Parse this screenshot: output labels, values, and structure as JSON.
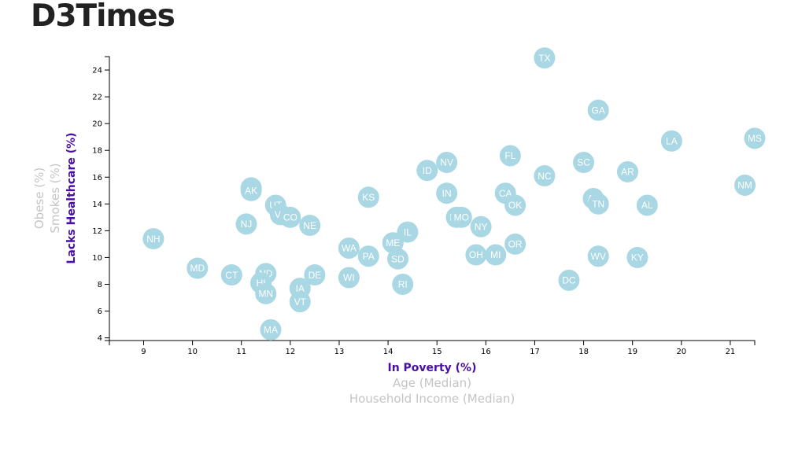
{
  "page": {
    "title": "D3Times"
  },
  "chart_data": {
    "type": "scatter",
    "title": "",
    "xlabel": "In Poverty (%)",
    "ylabel": "Lacks Healthcare (%)",
    "x_axis_options": [
      "In Poverty (%)",
      "Age (Median)",
      "Household Income (Median)"
    ],
    "y_axis_options": [
      "Lacks Healthcare (%)",
      "Smokes (%)",
      "Obese (%)"
    ],
    "xlim": [
      8.3,
      21.5
    ],
    "ylim": [
      3.8,
      25.0
    ],
    "x_ticks": [
      9,
      10,
      11,
      12,
      13,
      14,
      15,
      16,
      17,
      18,
      19,
      20,
      21
    ],
    "y_ticks": [
      4,
      6,
      8,
      10,
      12,
      14,
      16,
      18,
      20,
      22,
      24
    ],
    "grid": false,
    "marker_color": "#a9d7e4",
    "label_color": "#ffffff",
    "active_axis_color": "#4a0ea8",
    "inactive_axis_color": "#c4c4c4",
    "points": [
      {
        "label": "TX",
        "x": 17.2,
        "y": 24.9
      },
      {
        "label": "GA",
        "x": 18.3,
        "y": 21.0
      },
      {
        "label": "MS",
        "x": 21.5,
        "y": 18.9
      },
      {
        "label": "LA",
        "x": 19.8,
        "y": 18.7
      },
      {
        "label": "FL",
        "x": 16.5,
        "y": 17.6
      },
      {
        "label": "SC",
        "x": 18.0,
        "y": 17.1
      },
      {
        "label": "NV",
        "x": 15.2,
        "y": 17.1
      },
      {
        "label": "ID",
        "x": 14.8,
        "y": 16.5
      },
      {
        "label": "AR",
        "x": 18.9,
        "y": 16.4
      },
      {
        "label": "NC",
        "x": 17.2,
        "y": 16.1
      },
      {
        "label": "NM",
        "x": 21.3,
        "y": 15.4
      },
      {
        "label": "WY",
        "x": 11.2,
        "y": 15.2
      },
      {
        "label": "AK",
        "x": 11.2,
        "y": 15.0
      },
      {
        "label": "CA",
        "x": 16.4,
        "y": 14.8
      },
      {
        "label": "IN",
        "x": 15.2,
        "y": 14.8
      },
      {
        "label": "KS",
        "x": 13.6,
        "y": 14.5
      },
      {
        "label": "AZ",
        "x": 18.2,
        "y": 14.4
      },
      {
        "label": "TN",
        "x": 18.3,
        "y": 14.0
      },
      {
        "label": "AL",
        "x": 19.3,
        "y": 13.9
      },
      {
        "label": "OK",
        "x": 16.6,
        "y": 13.9
      },
      {
        "label": "UT",
        "x": 11.7,
        "y": 13.9
      },
      {
        "label": "VA",
        "x": 11.8,
        "y": 13.2
      },
      {
        "label": "CO",
        "x": 12.0,
        "y": 13.0
      },
      {
        "label": "MT",
        "x": 15.4,
        "y": 13.0
      },
      {
        "label": "MO",
        "x": 15.5,
        "y": 13.0
      },
      {
        "label": "NJ",
        "x": 11.1,
        "y": 12.5
      },
      {
        "label": "NE",
        "x": 12.4,
        "y": 12.4
      },
      {
        "label": "NY",
        "x": 15.9,
        "y": 12.3
      },
      {
        "label": "IL",
        "x": 14.4,
        "y": 11.9
      },
      {
        "label": "NH",
        "x": 9.2,
        "y": 11.4
      },
      {
        "label": "ME",
        "x": 14.1,
        "y": 11.1
      },
      {
        "label": "OR",
        "x": 16.6,
        "y": 11.0
      },
      {
        "label": "WA",
        "x": 13.2,
        "y": 10.7
      },
      {
        "label": "OH",
        "x": 15.8,
        "y": 10.2
      },
      {
        "label": "MI",
        "x": 16.2,
        "y": 10.2
      },
      {
        "label": "PA",
        "x": 13.6,
        "y": 10.1
      },
      {
        "label": "WV",
        "x": 18.3,
        "y": 10.1
      },
      {
        "label": "KY",
        "x": 19.1,
        "y": 10.0
      },
      {
        "label": "SD",
        "x": 14.2,
        "y": 9.9
      },
      {
        "label": "MD",
        "x": 10.1,
        "y": 9.2
      },
      {
        "label": "ND",
        "x": 11.5,
        "y": 8.8
      },
      {
        "label": "CT",
        "x": 10.8,
        "y": 8.7
      },
      {
        "label": "DE",
        "x": 12.5,
        "y": 8.7
      },
      {
        "label": "WI",
        "x": 13.2,
        "y": 8.5
      },
      {
        "label": "DC",
        "x": 17.7,
        "y": 8.3
      },
      {
        "label": "HI",
        "x": 11.4,
        "y": 8.1
      },
      {
        "label": "RI",
        "x": 14.3,
        "y": 8.0
      },
      {
        "label": "IA",
        "x": 12.2,
        "y": 7.7
      },
      {
        "label": "MN",
        "x": 11.5,
        "y": 7.3
      },
      {
        "label": "VT",
        "x": 12.2,
        "y": 6.7
      },
      {
        "label": "MA",
        "x": 11.6,
        "y": 4.6
      }
    ]
  }
}
